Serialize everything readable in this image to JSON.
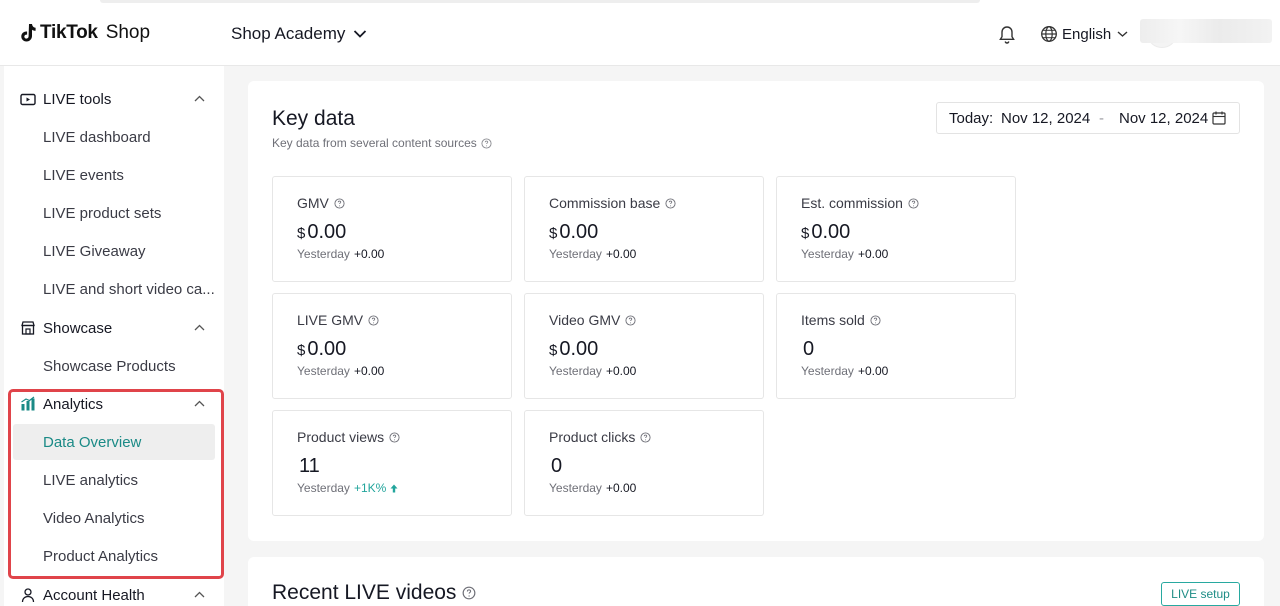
{
  "header": {
    "brand": "TikTok",
    "brand_suffix": "Shop",
    "academy": "Shop Academy",
    "language": "English"
  },
  "sidebar": {
    "sections": [
      {
        "label": "LIVE tools",
        "icon": "live-video-icon",
        "items": [
          "LIVE dashboard",
          "LIVE events",
          "LIVE product sets",
          "LIVE Giveaway",
          "LIVE and short video ca..."
        ]
      },
      {
        "label": "Showcase",
        "icon": "storefront-icon",
        "items": [
          "Showcase Products"
        ]
      },
      {
        "label": "Analytics",
        "icon": "bar-chart-icon",
        "items": [
          "Data Overview",
          "LIVE analytics",
          "Video Analytics",
          "Product Analytics"
        ],
        "active": "Data Overview"
      },
      {
        "label": "Account Health",
        "icon": "person-icon",
        "items": []
      }
    ]
  },
  "key_data": {
    "title": "Key data",
    "subtitle": "Key data from several content sources",
    "date_prefix": "Today:",
    "date_from": "Nov 12, 2024",
    "date_sep": "-",
    "date_to": "Nov 12, 2024",
    "cards": [
      {
        "name": "GMV",
        "currency": "$",
        "value": "0.00",
        "cmp_label": "Yesterday",
        "delta": "+0.00"
      },
      {
        "name": "Commission base",
        "currency": "$",
        "value": "0.00",
        "cmp_label": "Yesterday",
        "delta": "+0.00"
      },
      {
        "name": "Est. commission",
        "currency": "$",
        "value": "0.00",
        "cmp_label": "Yesterday",
        "delta": "+0.00"
      },
      {
        "name": "LIVE GMV",
        "currency": "$",
        "value": "0.00",
        "cmp_label": "Yesterday",
        "delta": "+0.00"
      },
      {
        "name": "Video GMV",
        "currency": "$",
        "value": "0.00",
        "cmp_label": "Yesterday",
        "delta": "+0.00"
      },
      {
        "name": "Items sold",
        "currency": "",
        "value": "0",
        "cmp_label": "Yesterday",
        "delta": "+0.00"
      },
      {
        "name": "Product views",
        "currency": "",
        "value": "11",
        "cmp_label": "Yesterday",
        "delta": "+1K%"
      },
      {
        "name": "Product clicks",
        "currency": "",
        "value": "0",
        "cmp_label": "Yesterday",
        "delta": "+0.00"
      }
    ]
  },
  "recent_live": {
    "title": "Recent LIVE videos",
    "setup_button": "LIVE setup"
  },
  "colors": {
    "accent": "#1a8a86",
    "highlight": "#e0444a",
    "up": "#22a59c"
  }
}
